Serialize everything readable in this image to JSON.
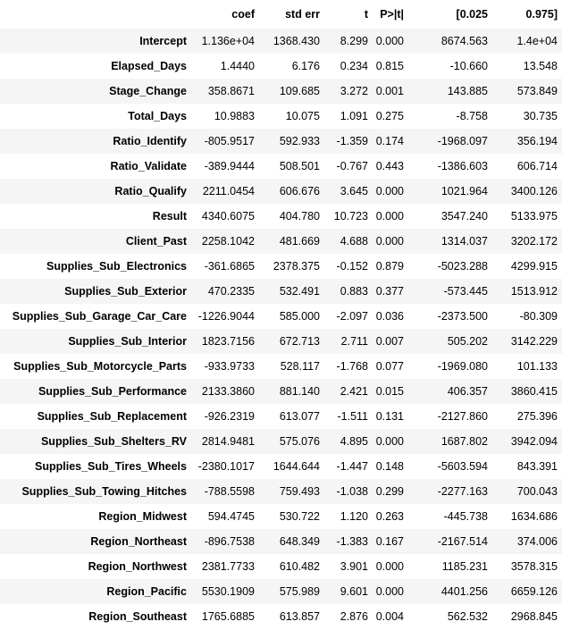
{
  "table": {
    "columns": [
      "",
      "coef",
      "std err",
      "t",
      "P>|t|",
      "[0.025",
      "0.975]"
    ],
    "rows": [
      {
        "name": "Intercept",
        "coef": "1.136e+04",
        "std_err": "1368.430",
        "t": "8.299",
        "p": "0.000",
        "lo": "8674.563",
        "hi": "1.4e+04"
      },
      {
        "name": "Elapsed_Days",
        "coef": "1.4440",
        "std_err": "6.176",
        "t": "0.234",
        "p": "0.815",
        "lo": "-10.660",
        "hi": "13.548"
      },
      {
        "name": "Stage_Change",
        "coef": "358.8671",
        "std_err": "109.685",
        "t": "3.272",
        "p": "0.001",
        "lo": "143.885",
        "hi": "573.849"
      },
      {
        "name": "Total_Days",
        "coef": "10.9883",
        "std_err": "10.075",
        "t": "1.091",
        "p": "0.275",
        "lo": "-8.758",
        "hi": "30.735"
      },
      {
        "name": "Ratio_Identify",
        "coef": "-805.9517",
        "std_err": "592.933",
        "t": "-1.359",
        "p": "0.174",
        "lo": "-1968.097",
        "hi": "356.194"
      },
      {
        "name": "Ratio_Validate",
        "coef": "-389.9444",
        "std_err": "508.501",
        "t": "-0.767",
        "p": "0.443",
        "lo": "-1386.603",
        "hi": "606.714"
      },
      {
        "name": "Ratio_Qualify",
        "coef": "2211.0454",
        "std_err": "606.676",
        "t": "3.645",
        "p": "0.000",
        "lo": "1021.964",
        "hi": "3400.126"
      },
      {
        "name": "Result",
        "coef": "4340.6075",
        "std_err": "404.780",
        "t": "10.723",
        "p": "0.000",
        "lo": "3547.240",
        "hi": "5133.975"
      },
      {
        "name": "Client_Past",
        "coef": "2258.1042",
        "std_err": "481.669",
        "t": "4.688",
        "p": "0.000",
        "lo": "1314.037",
        "hi": "3202.172"
      },
      {
        "name": "Supplies_Sub_Electronics",
        "coef": "-361.6865",
        "std_err": "2378.375",
        "t": "-0.152",
        "p": "0.879",
        "lo": "-5023.288",
        "hi": "4299.915"
      },
      {
        "name": "Supplies_Sub_Exterior",
        "coef": "470.2335",
        "std_err": "532.491",
        "t": "0.883",
        "p": "0.377",
        "lo": "-573.445",
        "hi": "1513.912"
      },
      {
        "name": "Supplies_Sub_Garage_Car_Care",
        "coef": "-1226.9044",
        "std_err": "585.000",
        "t": "-2.097",
        "p": "0.036",
        "lo": "-2373.500",
        "hi": "-80.309"
      },
      {
        "name": "Supplies_Sub_Interior",
        "coef": "1823.7156",
        "std_err": "672.713",
        "t": "2.711",
        "p": "0.007",
        "lo": "505.202",
        "hi": "3142.229"
      },
      {
        "name": "Supplies_Sub_Motorcycle_Parts",
        "coef": "-933.9733",
        "std_err": "528.117",
        "t": "-1.768",
        "p": "0.077",
        "lo": "-1969.080",
        "hi": "101.133"
      },
      {
        "name": "Supplies_Sub_Performance",
        "coef": "2133.3860",
        "std_err": "881.140",
        "t": "2.421",
        "p": "0.015",
        "lo": "406.357",
        "hi": "3860.415"
      },
      {
        "name": "Supplies_Sub_Replacement",
        "coef": "-926.2319",
        "std_err": "613.077",
        "t": "-1.511",
        "p": "0.131",
        "lo": "-2127.860",
        "hi": "275.396"
      },
      {
        "name": "Supplies_Sub_Shelters_RV",
        "coef": "2814.9481",
        "std_err": "575.076",
        "t": "4.895",
        "p": "0.000",
        "lo": "1687.802",
        "hi": "3942.094"
      },
      {
        "name": "Supplies_Sub_Tires_Wheels",
        "coef": "-2380.1017",
        "std_err": "1644.644",
        "t": "-1.447",
        "p": "0.148",
        "lo": "-5603.594",
        "hi": "843.391"
      },
      {
        "name": "Supplies_Sub_Towing_Hitches",
        "coef": "-788.5598",
        "std_err": "759.493",
        "t": "-1.038",
        "p": "0.299",
        "lo": "-2277.163",
        "hi": "700.043"
      },
      {
        "name": "Region_Midwest",
        "coef": "594.4745",
        "std_err": "530.722",
        "t": "1.120",
        "p": "0.263",
        "lo": "-445.738",
        "hi": "1634.686"
      },
      {
        "name": "Region_Northeast",
        "coef": "-896.7538",
        "std_err": "648.349",
        "t": "-1.383",
        "p": "0.167",
        "lo": "-2167.514",
        "hi": "374.006"
      },
      {
        "name": "Region_Northwest",
        "coef": "2381.7733",
        "std_err": "610.482",
        "t": "3.901",
        "p": "0.000",
        "lo": "1185.231",
        "hi": "3578.315"
      },
      {
        "name": "Region_Pacific",
        "coef": "5530.1909",
        "std_err": "575.989",
        "t": "9.601",
        "p": "0.000",
        "lo": "4401.256",
        "hi": "6659.126"
      },
      {
        "name": "Region_Southeast",
        "coef": "1765.6885",
        "std_err": "613.857",
        "t": "2.876",
        "p": "0.004",
        "lo": "562.532",
        "hi": "2968.845"
      }
    ]
  }
}
